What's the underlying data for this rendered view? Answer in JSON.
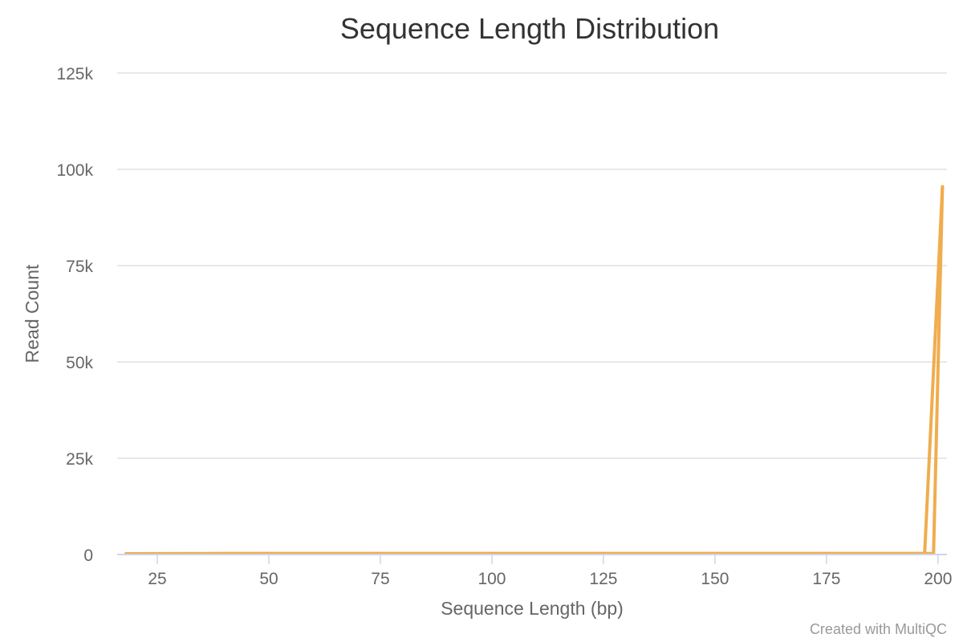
{
  "chart_data": {
    "type": "line",
    "title": "Sequence Length Distribution",
    "xlabel": "Sequence Length (bp)",
    "ylabel": "Read Count",
    "xlim": [
      16,
      202
    ],
    "ylim": [
      0,
      125000
    ],
    "x_ticks": [
      25,
      50,
      75,
      100,
      125,
      150,
      175,
      200
    ],
    "x_tick_labels": [
      "25",
      "50",
      "75",
      "100",
      "125",
      "150",
      "175",
      "200"
    ],
    "y_ticks": [
      0,
      25000,
      50000,
      75000,
      100000,
      125000
    ],
    "y_tick_labels": [
      "0",
      "25k",
      "50k",
      "75k",
      "100k",
      "125k"
    ],
    "grid": true,
    "series": [
      {
        "color": "#f0ad4e",
        "x": [
          18,
          40,
          60,
          80,
          100,
          120,
          140,
          160,
          180,
          196,
          197,
          201
        ],
        "y": [
          200,
          250,
          250,
          250,
          250,
          250,
          250,
          250,
          250,
          250,
          250,
          95500
        ]
      },
      {
        "color": "#f0ad4e",
        "x": [
          18,
          40,
          60,
          80,
          100,
          120,
          140,
          160,
          180,
          198,
          199,
          201
        ],
        "y": [
          200,
          250,
          250,
          250,
          250,
          250,
          250,
          250,
          250,
          250,
          250,
          95500
        ]
      }
    ]
  },
  "credit": "Created with MultiQC"
}
